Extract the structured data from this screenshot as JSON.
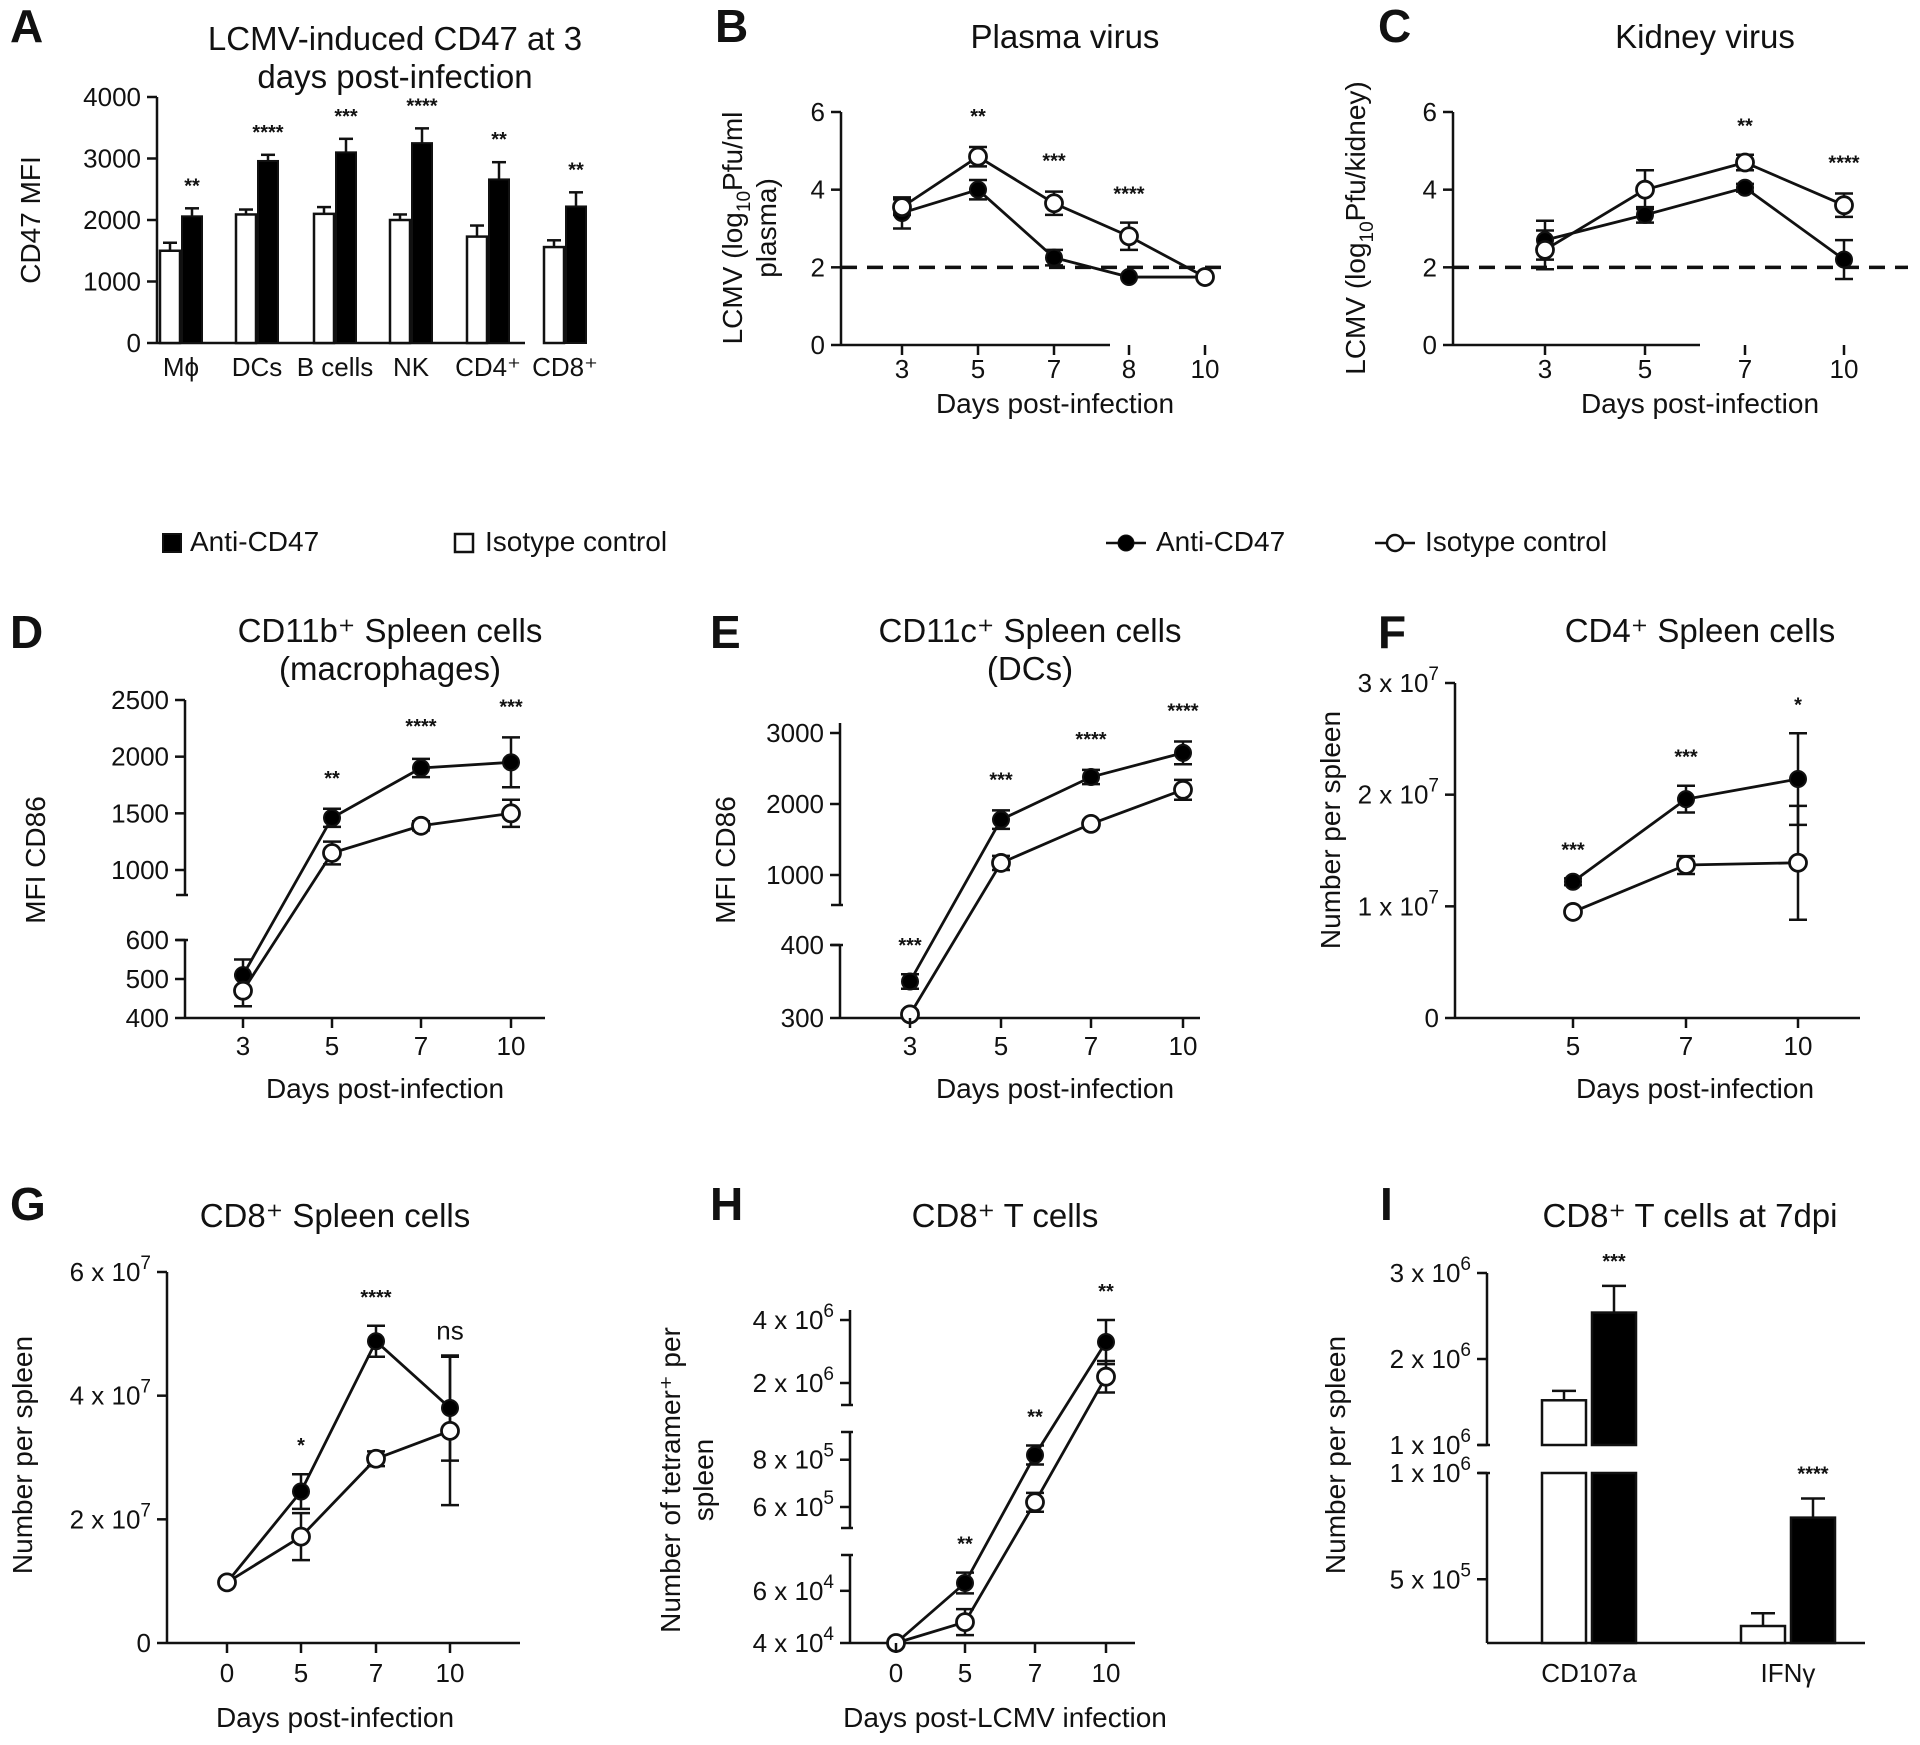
{
  "figure": {
    "legend_bar": {
      "anti": "Anti-CD47",
      "iso": "Isotype control"
    },
    "legend_line": {
      "anti": "Anti-CD47",
      "iso": "Isotype control"
    },
    "colors": {
      "anti": "#000000",
      "iso": "#ffffff",
      "stroke": "#111111"
    }
  },
  "chart_data": [
    {
      "id": "A",
      "type": "bar",
      "title": [
        "LCMV-induced CD47 at 3",
        "days post-infection"
      ],
      "ylabel": "CD47 MFI",
      "xlabel": "",
      "ylim": [
        0,
        4000
      ],
      "yticks": [
        0,
        1000,
        2000,
        3000,
        4000
      ],
      "categories": [
        "Mϕ",
        "DCs",
        "B cells",
        "NK",
        "CD4⁺",
        "CD8⁺"
      ],
      "series": [
        {
          "name": "Isotype control",
          "values": [
            1500,
            2090,
            2100,
            2000,
            1730,
            1560
          ],
          "errors": [
            130,
            80,
            110,
            90,
            180,
            110
          ]
        },
        {
          "name": "Anti-CD47",
          "values": [
            2060,
            2960,
            3100,
            3250,
            2660,
            2220
          ],
          "errors": [
            130,
            100,
            220,
            240,
            280,
            230
          ]
        }
      ],
      "significance": [
        "**",
        "****",
        "***",
        "****",
        "**",
        "**"
      ]
    },
    {
      "id": "B",
      "type": "line",
      "title": [
        "Plasma virus"
      ],
      "ylabel": [
        "LCMV (log",
        "10",
        "Pfu/ml",
        "plasma)"
      ],
      "xlabel": "Days post-infection",
      "ylim": [
        0,
        6
      ],
      "yticks": [
        0,
        2,
        4,
        6
      ],
      "categories": [
        "3",
        "5",
        "7",
        "8",
        "10"
      ],
      "dashed_line": 2,
      "series": [
        {
          "name": "Anti-CD47",
          "values": [
            3.4,
            4.0,
            2.25,
            1.75,
            1.75
          ],
          "errors": [
            0.4,
            0.25,
            0.2,
            0,
            0
          ]
        },
        {
          "name": "Isotype control",
          "values": [
            3.55,
            4.85,
            3.65,
            2.8,
            1.75
          ],
          "errors": [
            0.2,
            0.25,
            0.3,
            0.35,
            0
          ]
        }
      ],
      "significance": [
        "",
        "**",
        "***",
        "****",
        ""
      ]
    },
    {
      "id": "C",
      "type": "line",
      "title": [
        "Kidney virus"
      ],
      "ylabel": [
        "LCMV (log",
        "10",
        "Pfu/kidney)"
      ],
      "xlabel": "Days post-infection",
      "ylim": [
        0,
        6
      ],
      "yticks": [
        0,
        2,
        4,
        6
      ],
      "categories": [
        "3",
        "5",
        "7",
        "10"
      ],
      "dashed_line": 2,
      "series": [
        {
          "name": "Anti-CD47",
          "values": [
            2.7,
            3.35,
            4.05,
            2.2
          ],
          "errors": [
            0.5,
            0.2,
            0.1,
            0.5
          ]
        },
        {
          "name": "Isotype control",
          "values": [
            2.45,
            4.0,
            4.7,
            3.6
          ],
          "errors": [
            0.5,
            0.5,
            0.2,
            0.3
          ]
        }
      ],
      "significance": [
        "",
        "",
        "**",
        "****"
      ]
    },
    {
      "id": "D",
      "type": "line",
      "title": [
        "CD11b⁺ Spleen cells",
        "(macrophages)"
      ],
      "ylabel": "MFI CD86",
      "xlabel": "Days post-infection",
      "broken_axis": true,
      "ytick_labels": [
        "400",
        "500",
        "600",
        "1000",
        "1500",
        "2000",
        "2500"
      ],
      "categories": [
        "3",
        "5",
        "7",
        "10"
      ],
      "series": [
        {
          "name": "Anti-CD47",
          "values": [
            510,
            1460,
            1900,
            1950
          ],
          "errors": [
            40,
            80,
            80,
            220
          ]
        },
        {
          "name": "Isotype control",
          "values": [
            470,
            1150,
            1390,
            1500
          ],
          "errors": [
            40,
            100,
            40,
            120
          ]
        }
      ],
      "significance": [
        "",
        "**",
        "****",
        "***"
      ]
    },
    {
      "id": "E",
      "type": "line",
      "title": [
        "CD11c⁺ Spleen cells",
        "(DCs)"
      ],
      "ylabel": "MFI CD86",
      "xlabel": "Days post-infection",
      "broken_axis": true,
      "ytick_labels": [
        "300",
        "400",
        "1000",
        "2000",
        "3000"
      ],
      "categories": [
        "3",
        "5",
        "7",
        "10"
      ],
      "series": [
        {
          "name": "Anti-CD47",
          "values": [
            350,
            1780,
            2380,
            2720
          ],
          "errors": [
            10,
            130,
            100,
            160
          ]
        },
        {
          "name": "Isotype control",
          "values": [
            305,
            1170,
            1720,
            2200
          ],
          "errors": [
            5,
            100,
            50,
            140
          ]
        }
      ],
      "significance": [
        "***",
        "***",
        "****",
        "****"
      ]
    },
    {
      "id": "F",
      "type": "line",
      "title": [
        "CD4⁺ Spleen cells"
      ],
      "ylabel": "Number per spleen",
      "xlabel": "Days post-infection",
      "ylim": [
        0,
        30000000
      ],
      "yticks": [
        0,
        10000000,
        20000000,
        30000000
      ],
      "ytick_labels": [
        "0",
        "1 x 10^7",
        "2 x 10^7",
        "3 x 10^7"
      ],
      "categories": [
        "5",
        "7",
        "10"
      ],
      "series": [
        {
          "name": "Anti-CD47",
          "values": [
            12200000,
            19600000,
            21400000
          ],
          "errors": [
            300000,
            1200000,
            4100000
          ]
        },
        {
          "name": "Isotype control",
          "values": [
            9500000,
            13700000,
            13900000
          ],
          "errors": [
            300000,
            800000,
            5100000
          ]
        }
      ],
      "significance": [
        "***",
        "***",
        "*"
      ]
    },
    {
      "id": "G",
      "type": "line",
      "title": [
        "CD8⁺ Spleen cells"
      ],
      "ylabel": "Number per spleen",
      "xlabel": "Days post-infection",
      "ylim": [
        0,
        60000000
      ],
      "yticks": [
        0,
        20000000,
        40000000,
        60000000
      ],
      "ytick_labels": [
        "0",
        "2 x 10^7",
        "4 x 10^7",
        "6 x 10^7"
      ],
      "categories": [
        "0",
        "5",
        "7",
        "10"
      ],
      "series": [
        {
          "name": "Anti-CD47",
          "values": [
            9800000,
            24500000,
            48800000,
            38000000
          ],
          "errors": [
            0,
            2800000,
            2500000,
            8500000
          ]
        },
        {
          "name": "Isotype control",
          "values": [
            9800000,
            17200000,
            29800000,
            34300000
          ],
          "errors": [
            0,
            3800000,
            1200000,
            12000000
          ]
        }
      ],
      "significance": [
        "",
        "*",
        "****",
        "ns"
      ]
    },
    {
      "id": "H",
      "type": "line",
      "title": [
        "CD8⁺ T cells"
      ],
      "ylabel": [
        "Number of tetramer⁺ per",
        "spleen"
      ],
      "xlabel": "Days post-LCMV infection",
      "broken_axis": true,
      "ytick_labels": [
        "4 x 10^4",
        "6 x 10^4",
        "6 x 10^5",
        "8 x 10^5",
        "2 x 10^6",
        "4 x 10^6"
      ],
      "categories": [
        "0",
        "5",
        "7",
        "10"
      ],
      "series": [
        {
          "name": "Anti-CD47",
          "values": [
            40000,
            63000,
            820000,
            3300000
          ],
          "errors": [
            0,
            4000,
            40000,
            700000
          ]
        },
        {
          "name": "Isotype control",
          "values": [
            40000,
            48000,
            620000,
            2200000
          ],
          "errors": [
            0,
            5000,
            40000,
            500000
          ]
        }
      ],
      "significance": [
        "",
        "**",
        "**",
        "**"
      ]
    },
    {
      "id": "I",
      "type": "bar",
      "title": [
        "CD8⁺ T cells at 7dpi"
      ],
      "ylabel": "Number per spleen",
      "xlabel": "",
      "broken_axis": true,
      "ytick_labels": [
        "5 x 10^5",
        "1 x 10^6",
        "1 x 10^6",
        "2 x 10^6",
        "3 x 10^6"
      ],
      "categories": [
        "CD107a",
        "IFNγ"
      ],
      "series": [
        {
          "name": "Isotype control",
          "values": [
            1520000,
            280000
          ],
          "errors": [
            110000,
            60000
          ]
        },
        {
          "name": "Anti-CD47",
          "values": [
            2540000,
            790000
          ],
          "errors": [
            310000,
            90000
          ]
        }
      ],
      "significance": [
        "***",
        "****"
      ]
    }
  ]
}
